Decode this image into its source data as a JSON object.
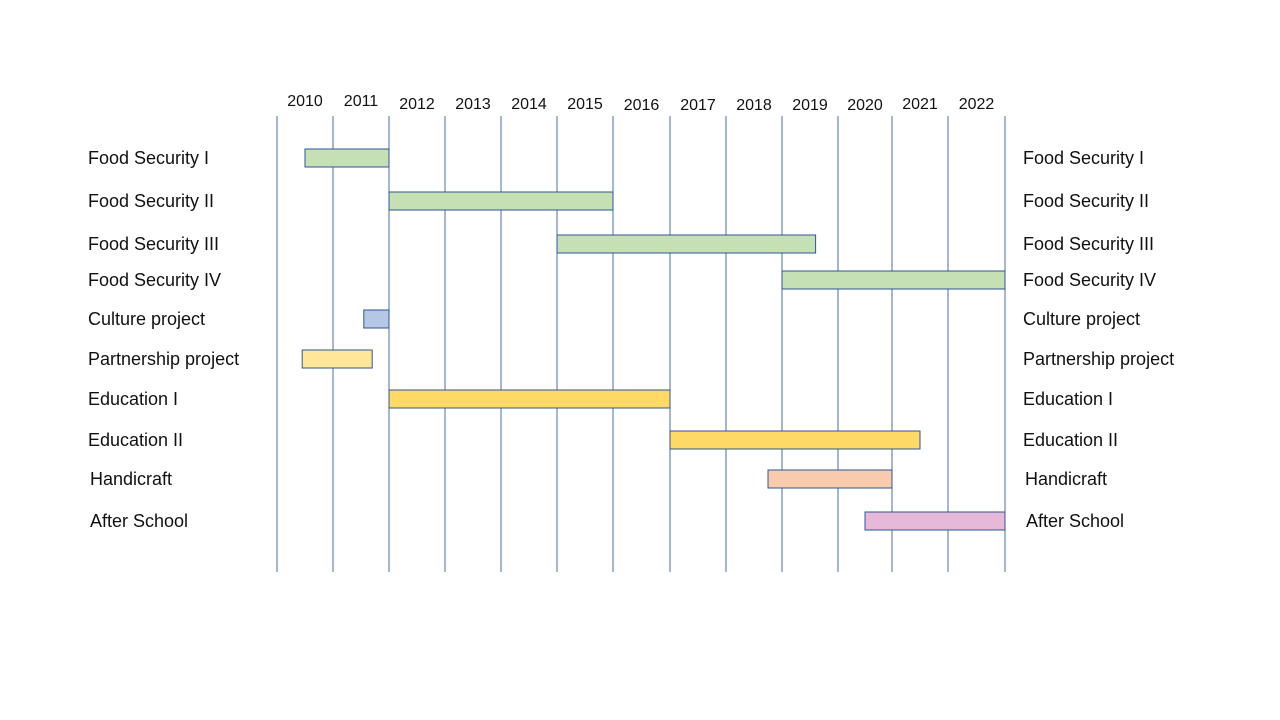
{
  "chart_data": {
    "type": "gantt",
    "title": "",
    "xlabel": "",
    "ylabel": "",
    "years": [
      "2010",
      "2011",
      "2012",
      "2013",
      "2014",
      "2015",
      "2016",
      "2017",
      "2018",
      "2019",
      "2020",
      "2021",
      "2022"
    ],
    "xlim": [
      2010,
      2023
    ],
    "grid": true,
    "tasks": [
      {
        "name": "Food Security I",
        "start": 2010.5,
        "end": 2012.0,
        "color": "#c5e0b4"
      },
      {
        "name": "Food Security II",
        "start": 2012.0,
        "end": 2016.0,
        "color": "#c5e0b4"
      },
      {
        "name": "Food Security III",
        "start": 2015.0,
        "end": 2019.6,
        "color": "#c5e0b4"
      },
      {
        "name": "Food Security IV",
        "start": 2019.0,
        "end": 2023.0,
        "color": "#c5e0b4"
      },
      {
        "name": "Culture project",
        "start": 2011.55,
        "end": 2012.0,
        "color": "#b4c7e7"
      },
      {
        "name": "Partnership project",
        "start": 2010.45,
        "end": 2011.7,
        "color": "#ffe699"
      },
      {
        "name": "Education I",
        "start": 2012.0,
        "end": 2017.0,
        "color": "#ffd966"
      },
      {
        "name": "Education II",
        "start": 2017.0,
        "end": 2021.5,
        "color": "#ffd966"
      },
      {
        "name": "Handicraft",
        "start": 2018.75,
        "end": 2021.0,
        "color": "#f8cbad"
      },
      {
        "name": "After School",
        "start": 2020.5,
        "end": 2023.0,
        "color": "#e6b9d8"
      }
    ]
  }
}
